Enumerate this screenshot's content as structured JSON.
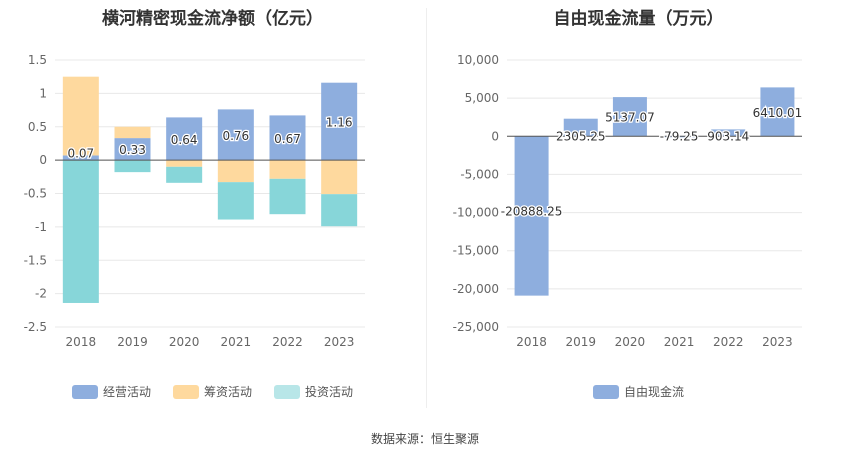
{
  "colors": {
    "operating": "#8eaede",
    "financing": "#fed99e",
    "investing": "#87d6d9",
    "free_cash_flow": "#8eaede"
  },
  "source": "数据来源：恒生聚源",
  "chart_data": [
    {
      "type": "bar",
      "stacked": true,
      "title": "横河精密现金流净额（亿元）",
      "categories": [
        "2018",
        "2019",
        "2020",
        "2021",
        "2022",
        "2023"
      ],
      "ylim": [
        -2.5,
        1.5
      ],
      "yticks": [
        "1.5",
        "1",
        "0.5",
        "0",
        "-0.5",
        "-1",
        "-1.5",
        "-2",
        "-2.5"
      ],
      "grid": true,
      "legend_position": "bottom",
      "series": [
        {
          "name": "经营活动",
          "values": [
            0.07,
            0.33,
            0.64,
            0.76,
            0.67,
            1.16
          ],
          "labels": [
            "0.07",
            "0.33",
            "0.64",
            "0.76",
            "0.67",
            "1.16"
          ]
        },
        {
          "name": "筹资活动",
          "values": [
            1.18,
            0.17,
            -0.1,
            -0.33,
            -0.28,
            -0.51
          ]
        },
        {
          "name": "投资活动",
          "values": [
            -2.14,
            -0.18,
            -0.24,
            -0.56,
            -0.53,
            -0.48
          ]
        }
      ]
    },
    {
      "type": "bar",
      "title": "自由现金流量（万元）",
      "categories": [
        "2018",
        "2019",
        "2020",
        "2021",
        "2022",
        "2023"
      ],
      "ylim": [
        -25000,
        10000
      ],
      "yticks": [
        "10,000",
        "5,000",
        "0",
        "-5,000",
        "-10,000",
        "-15,000",
        "-20,000",
        "-25,000"
      ],
      "grid": true,
      "legend_position": "bottom",
      "series": [
        {
          "name": "自由现金流",
          "values": [
            -20888.25,
            2305.25,
            5137.07,
            -79.25,
            903.14,
            6410.01
          ],
          "labels": [
            "-20888.25",
            "2305.25",
            "5137.07",
            "-79.25",
            "903.14",
            "6410.01"
          ]
        }
      ]
    }
  ]
}
